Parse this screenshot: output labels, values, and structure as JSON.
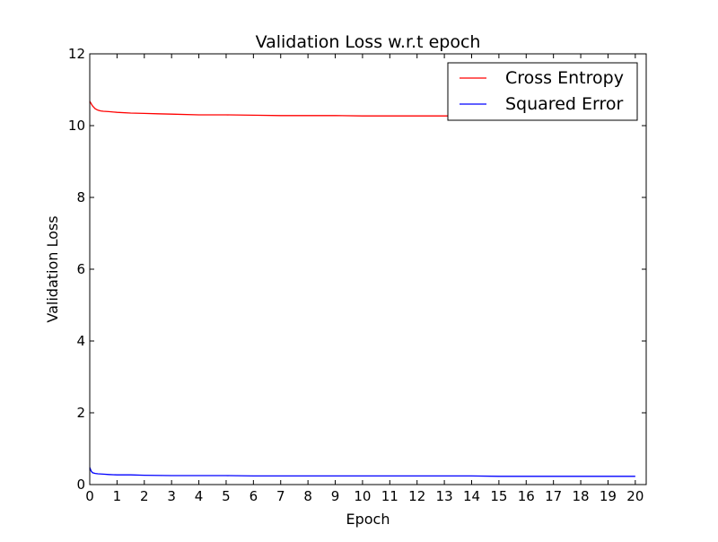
{
  "chart_data": {
    "type": "line",
    "title": "Validation Loss w.r.t epoch",
    "xlabel": "Epoch",
    "ylabel": "Validation Loss",
    "xlim": [
      0,
      20.4
    ],
    "ylim": [
      0,
      12
    ],
    "x_ticks": [
      "0",
      "1",
      "2",
      "3",
      "4",
      "5",
      "6",
      "7",
      "8",
      "9",
      "10",
      "11",
      "12",
      "13",
      "14",
      "15",
      "16",
      "17",
      "18",
      "19",
      "20"
    ],
    "y_ticks": [
      "0",
      "2",
      "4",
      "6",
      "8",
      "10",
      "12"
    ],
    "grid": false,
    "legend_position": "top-right",
    "series": [
      {
        "name": "Cross Entropy",
        "color": "#ff0000",
        "x": [
          0,
          0.1,
          0.2,
          0.3,
          0.4,
          0.5,
          0.7,
          1.0,
          1.5,
          2.0,
          2.5,
          3.0,
          4.0,
          5.0,
          6.0,
          7.0,
          8.0,
          9.0,
          10.0,
          11.0,
          12.0,
          13.0,
          14.0,
          15.0,
          16.0,
          17.0,
          18.0,
          19.0,
          20.0
        ],
        "y": [
          10.68,
          10.55,
          10.47,
          10.43,
          10.41,
          10.4,
          10.39,
          10.37,
          10.35,
          10.34,
          10.33,
          10.32,
          10.3,
          10.3,
          10.29,
          10.28,
          10.28,
          10.28,
          10.27,
          10.27,
          10.27,
          10.27,
          10.27,
          10.27,
          10.27,
          10.27,
          10.26,
          10.26,
          10.26
        ]
      },
      {
        "name": "Squared Error",
        "color": "#0000ff",
        "x": [
          0,
          0.05,
          0.1,
          0.2,
          0.3,
          0.5,
          0.7,
          1.0,
          1.5,
          2.0,
          3.0,
          4.0,
          5.0,
          6.0,
          7.0,
          8.0,
          9.0,
          10.0,
          11.0,
          12.0,
          13.0,
          14.0,
          15.0,
          16.0,
          17.0,
          18.0,
          19.0,
          20.0
        ],
        "y": [
          0.48,
          0.38,
          0.33,
          0.31,
          0.3,
          0.29,
          0.28,
          0.27,
          0.27,
          0.26,
          0.25,
          0.25,
          0.25,
          0.24,
          0.24,
          0.24,
          0.24,
          0.24,
          0.24,
          0.24,
          0.24,
          0.24,
          0.23,
          0.23,
          0.23,
          0.23,
          0.23,
          0.23
        ]
      }
    ]
  }
}
